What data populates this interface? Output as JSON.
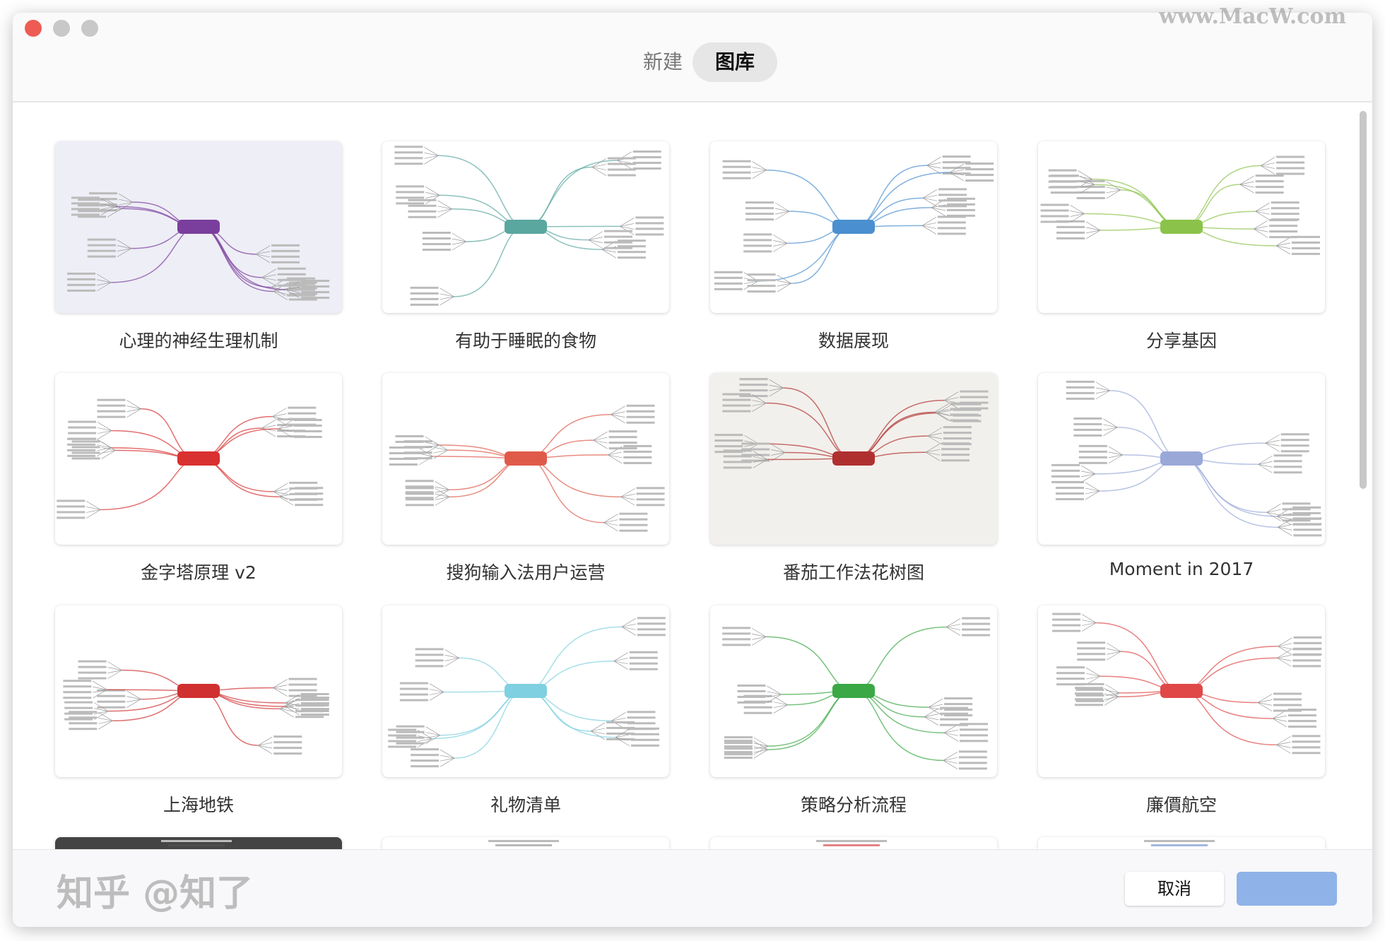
{
  "window": {
    "controls": [
      {
        "name": "close",
        "color": "#ee5b55"
      },
      {
        "name": "minimize",
        "color": "#c8c8c8"
      },
      {
        "name": "zoom",
        "color": "#c8c8c8"
      }
    ]
  },
  "tabs": [
    {
      "label": "新建",
      "active": false
    },
    {
      "label": "图库",
      "active": true
    }
  ],
  "templates": [
    {
      "title": "心理的神经生理机制",
      "accent": "#7a3f9d",
      "bg": "#eeeef6"
    },
    {
      "title": "有助于睡眠的食物",
      "accent": "#5aa7a0",
      "bg": "#ffffff"
    },
    {
      "title": "数据展现",
      "accent": "#4a8fd0",
      "bg": "#ffffff"
    },
    {
      "title": "分享基因",
      "accent": "#8bc34a",
      "bg": "#ffffff"
    },
    {
      "title": "金字塔原理 v2",
      "accent": "#d93030",
      "bg": "#ffffff"
    },
    {
      "title": "搜狗输入法用户运营",
      "accent": "#e05a4a",
      "bg": "#ffffff"
    },
    {
      "title": "番茄工作法花树图",
      "accent": "#b03030",
      "bg": "#f2f0ec"
    },
    {
      "title": "Moment in 2017",
      "accent": "#9aa8d8",
      "bg": "#ffffff"
    },
    {
      "title": "上海地铁",
      "accent": "#d03030",
      "bg": "#ffffff"
    },
    {
      "title": "礼物清单",
      "accent": "#7fd0e0",
      "bg": "#ffffff"
    },
    {
      "title": "策略分析流程",
      "accent": "#3aa845",
      "bg": "#ffffff"
    },
    {
      "title": "廉價航空",
      "accent": "#e04848",
      "bg": "#ffffff"
    },
    {
      "title": "",
      "accent": "#555555",
      "bg": "#444444"
    },
    {
      "title": "",
      "accent": "#888888",
      "bg": "#ffffff"
    },
    {
      "title": "",
      "accent": "#d03030",
      "bg": "#ffffff"
    },
    {
      "title": "",
      "accent": "#6688cc",
      "bg": "#ffffff"
    }
  ],
  "footer": {
    "cancel_label": "取消",
    "confirm_label": ""
  },
  "watermarks": {
    "top": "www.MacW.com",
    "bottom": "知乎 @知了"
  }
}
